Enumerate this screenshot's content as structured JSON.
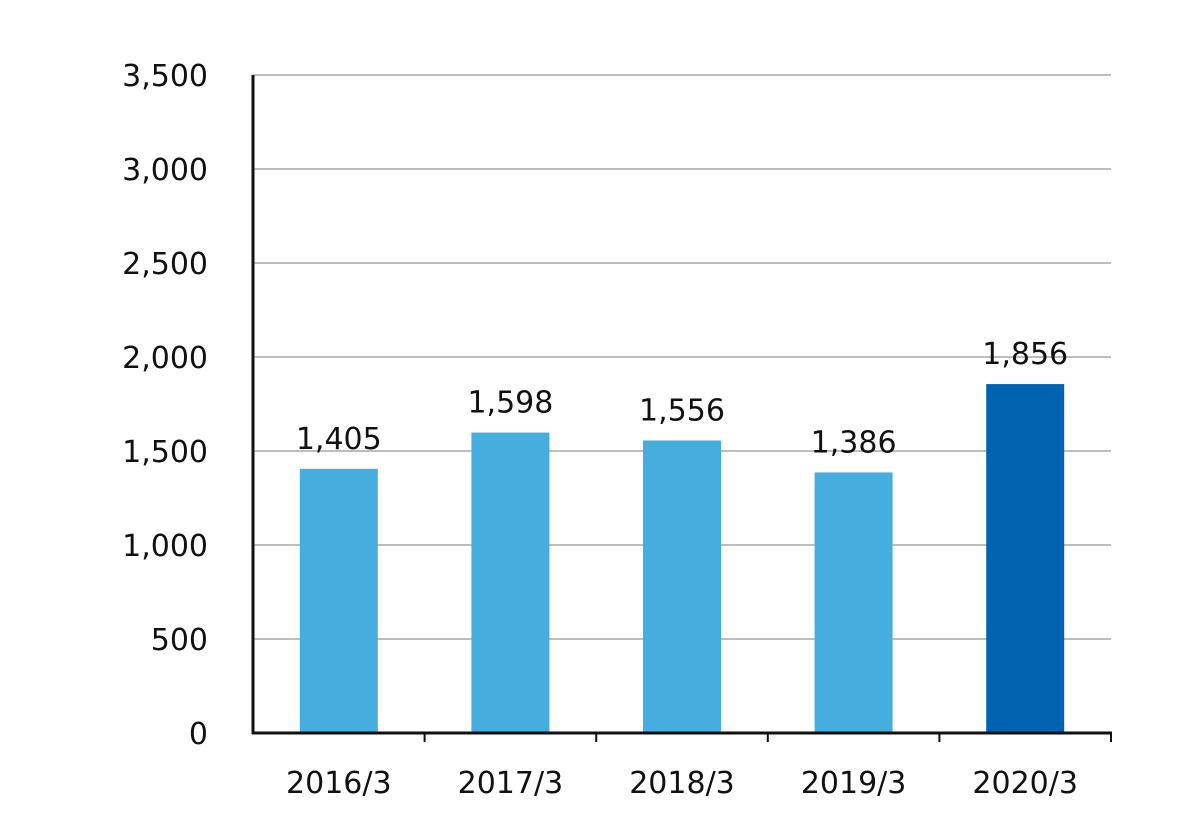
{
  "chart_data": {
    "type": "bar",
    "title": "",
    "xlabel": "",
    "ylabel": "",
    "categories": [
      "2016/3",
      "2017/3",
      "2018/3",
      "2019/3",
      "2020/3"
    ],
    "values": [
      1405,
      1598,
      1556,
      1386,
      1856
    ],
    "value_labels": [
      "1,405",
      "1,598",
      "1,556",
      "1,386",
      "1,856"
    ],
    "ylim": [
      0,
      3500
    ],
    "y_ticks": [
      0,
      500,
      1000,
      1500,
      2000,
      2500,
      3000,
      3500
    ],
    "y_tick_labels": [
      "0",
      "500",
      "1,000",
      "1,500",
      "2,000",
      "2,500",
      "3,000",
      "3,500"
    ],
    "grid": true,
    "legend": "none",
    "colors": {
      "bar": "#45AEDF",
      "highlight_bar": "#0063B1",
      "grid": "#BDBDBD",
      "axis": "#111111",
      "text": "#111111"
    },
    "highlight_index": 4
  }
}
